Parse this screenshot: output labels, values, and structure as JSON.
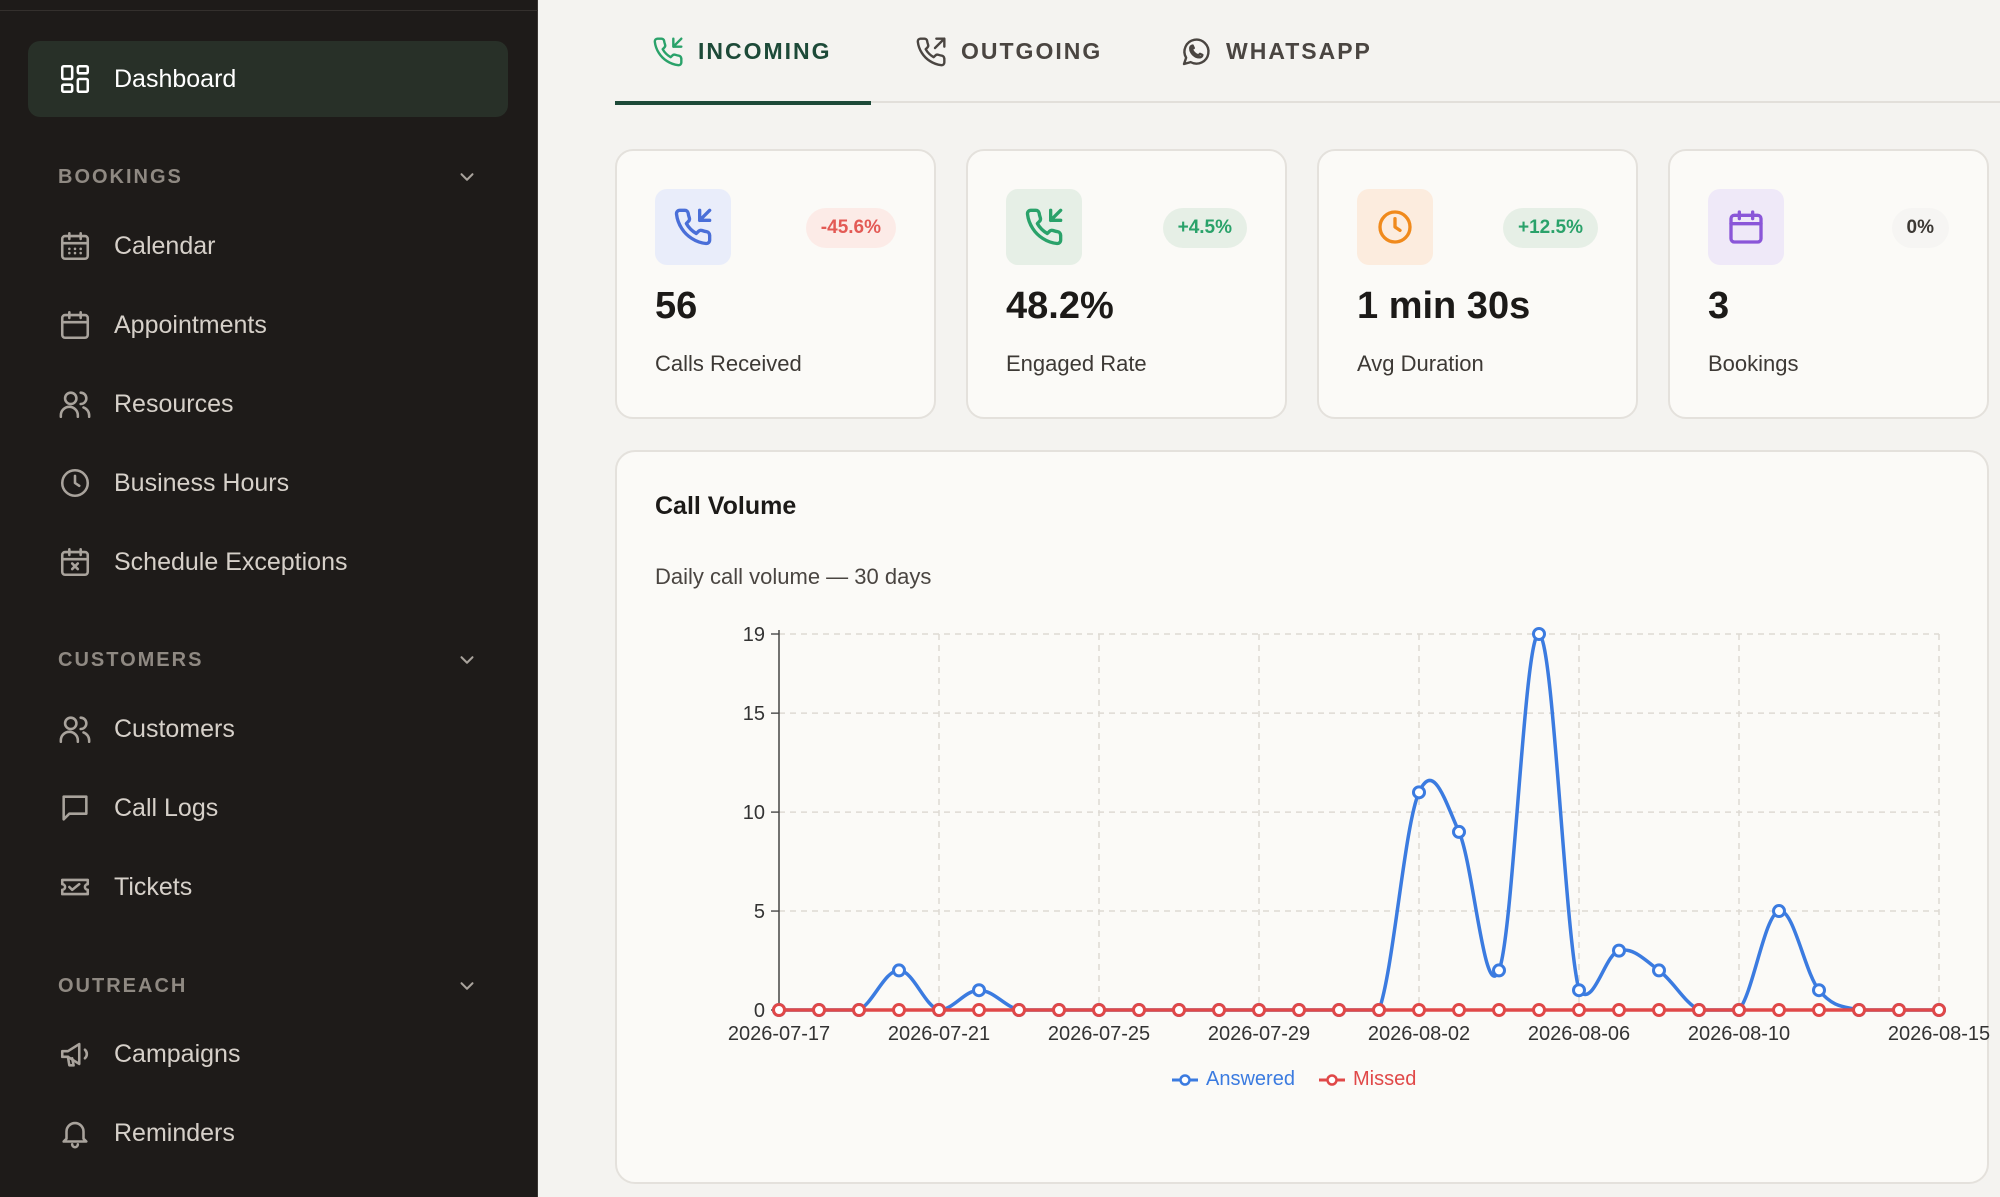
{
  "sidebar": {
    "dashboard": "Dashboard",
    "sections": [
      {
        "title": "BOOKINGS",
        "items": [
          "Calendar",
          "Appointments",
          "Resources",
          "Business Hours",
          "Schedule Exceptions"
        ]
      },
      {
        "title": "CUSTOMERS",
        "items": [
          "Customers",
          "Call Logs",
          "Tickets"
        ]
      },
      {
        "title": "OUTREACH",
        "items": [
          "Campaigns",
          "Reminders"
        ]
      }
    ]
  },
  "tabs": [
    "INCOMING",
    "OUTGOING",
    "WHATSAPP"
  ],
  "stats": [
    {
      "value": "56",
      "label": "Calls Received",
      "badge": "-45.6%",
      "icon": "phone-incoming-icon",
      "color": "#4a6fd8",
      "iconBg": "#e9edfa",
      "badgeColor": "#e35a55",
      "badgeBg": "#fcebe7"
    },
    {
      "value": "48.2%",
      "label": "Engaged Rate",
      "badge": "+4.5%",
      "icon": "phone-incoming-icon",
      "color": "#2aa26a",
      "iconBg": "#e6efe6",
      "badgeColor": "#2aa26a",
      "badgeBg": "#e6efe6"
    },
    {
      "value": "1 min 30s",
      "label": "Avg Duration",
      "badge": "+12.5%",
      "icon": "clock-icon",
      "color": "#f08a1c",
      "iconBg": "#fcecde",
      "badgeColor": "#2aa26a",
      "badgeBg": "#e6efe6"
    },
    {
      "value": "3",
      "label": "Bookings",
      "badge": "0%",
      "icon": "calendar-icon",
      "color": "#8a56d8",
      "iconBg": "#efe9f8",
      "badgeColor": "#3d3935",
      "badgeBg": "#f6f5f3"
    }
  ],
  "chart": {
    "title": "Call Volume",
    "subtitle": "Daily call volume — 30 days"
  },
  "chart_data": {
    "type": "line",
    "x": [
      "2026-07-17",
      "2026-07-18",
      "2026-07-19",
      "2026-07-20",
      "2026-07-21",
      "2026-07-22",
      "2026-07-23",
      "2026-07-24",
      "2026-07-25",
      "2026-07-26",
      "2026-07-27",
      "2026-07-28",
      "2026-07-29",
      "2026-07-30",
      "2026-07-31",
      "2026-08-01",
      "2026-08-02",
      "2026-08-03",
      "2026-08-04",
      "2026-08-05",
      "2026-08-06",
      "2026-08-07",
      "2026-08-08",
      "2026-08-09",
      "2026-08-10",
      "2026-08-11",
      "2026-08-12",
      "2026-08-13",
      "2026-08-14",
      "2026-08-15"
    ],
    "x_tick_labels": [
      "2026-07-17",
      "2026-07-21",
      "2026-07-25",
      "2026-07-29",
      "2026-08-02",
      "2026-08-06",
      "2026-08-10",
      "2026-08-15"
    ],
    "y_ticks": [
      0,
      5,
      10,
      15,
      19
    ],
    "ylim": [
      0,
      19
    ],
    "grid": true,
    "legend_position": "bottom",
    "series": [
      {
        "name": "Answered",
        "color": "#3b7be0",
        "values": [
          0,
          0,
          0,
          2,
          0,
          1,
          0,
          0,
          0,
          0,
          0,
          0,
          0,
          0,
          0,
          0,
          11,
          9,
          2,
          19,
          1,
          3,
          2,
          0,
          0,
          5,
          1,
          0,
          0,
          0
        ]
      },
      {
        "name": "Missed",
        "color": "#e04848",
        "values": [
          0,
          0,
          0,
          0,
          0,
          0,
          0,
          0,
          0,
          0,
          0,
          0,
          0,
          0,
          0,
          0,
          0,
          0,
          0,
          0,
          0,
          0,
          0,
          0,
          0,
          0,
          0,
          0,
          0,
          0
        ]
      }
    ]
  }
}
